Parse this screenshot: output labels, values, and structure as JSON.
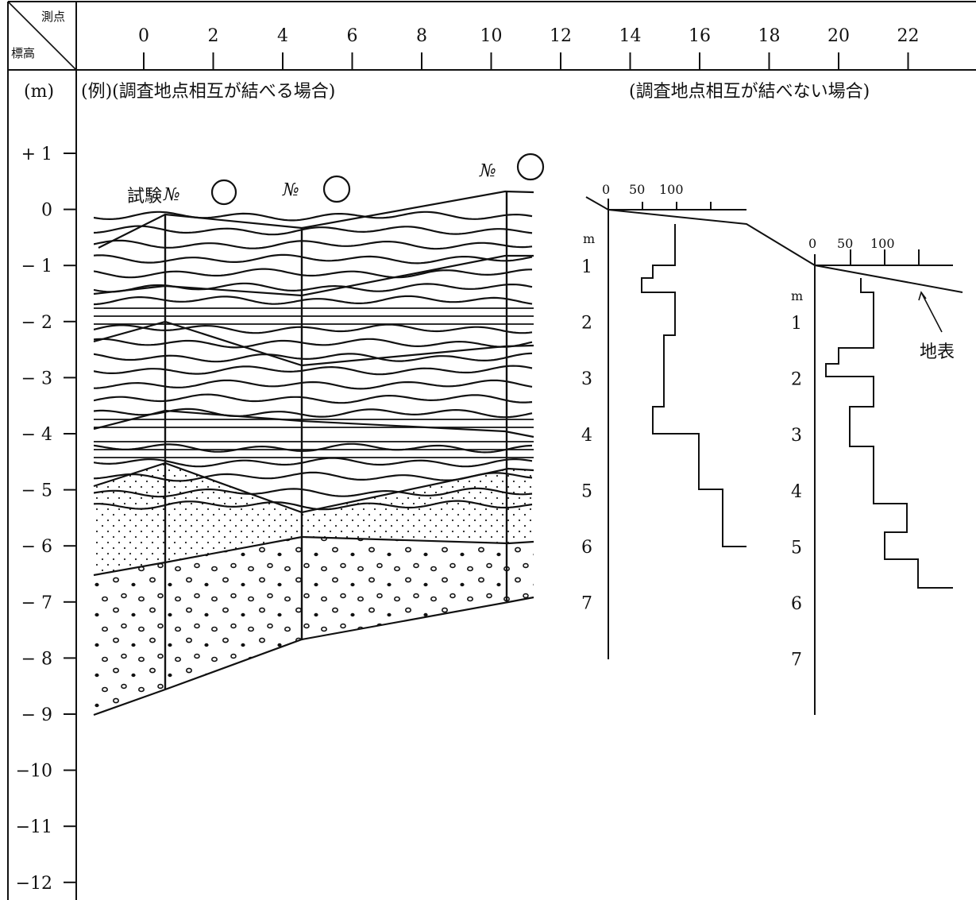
{
  "header": {
    "corner_top": "測点",
    "corner_bottom": "標高",
    "x_ticks": [
      "0",
      "2",
      "4",
      "6",
      "8",
      "10",
      "12",
      "14",
      "16",
      "18",
      "20",
      "22"
    ]
  },
  "unit_label": "(m)",
  "elevation_ticks": [
    "+ 1",
    "0",
    "− 1",
    "− 2",
    "− 3",
    "− 4",
    "− 5",
    "− 6",
    "− 7",
    "− 8",
    "− 9",
    "−10",
    "−11",
    "−12"
  ],
  "section_left": {
    "title": "(例)(調査地点相互が結べる場合)",
    "test_label": "試験",
    "no_label": "№"
  },
  "section_right": {
    "title": "(調査地点相互が結べない場合)",
    "scale_ticks": [
      "0",
      "50",
      "100"
    ],
    "depth_unit": "m",
    "depth_ticks_a": [
      "1",
      "2",
      "3",
      "4",
      "5",
      "6",
      "7"
    ],
    "depth_ticks_b": [
      "1",
      "2",
      "3",
      "4",
      "5",
      "6",
      "7"
    ],
    "ground_label": "地表"
  }
}
